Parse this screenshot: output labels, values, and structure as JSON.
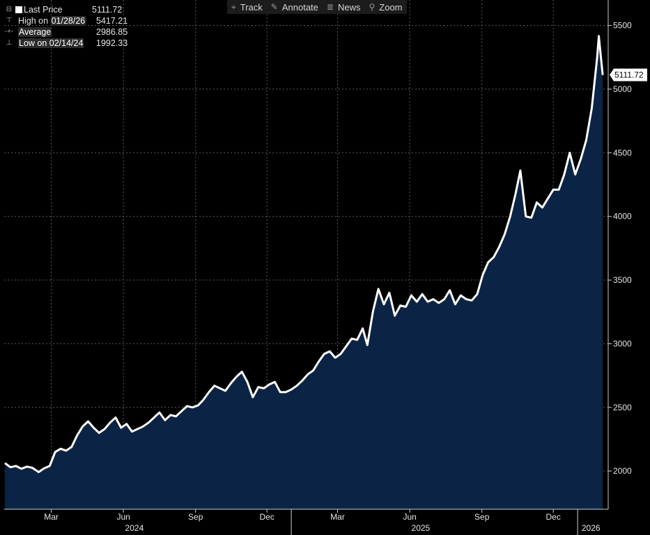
{
  "toolbar": {
    "items": [
      {
        "label": "Track",
        "icon": "crosshair-icon",
        "glyph": "⌖"
      },
      {
        "label": "Annotate",
        "icon": "pencil-icon",
        "glyph": "✎"
      },
      {
        "label": "News",
        "icon": "news-icon",
        "glyph": "≣"
      },
      {
        "label": "Zoom",
        "icon": "magnifier-icon",
        "glyph": "⚲"
      }
    ]
  },
  "legend": {
    "last": {
      "label": "Last Price",
      "value": "5111.72"
    },
    "high": {
      "prefix": "High on ",
      "date": "01/28/26",
      "value": "5417.21"
    },
    "average": {
      "label": "Average",
      "value": "2986.85"
    },
    "low": {
      "prefix": "Low on ",
      "date": "02/14/24",
      "value": "1992.33"
    }
  },
  "chart_data": {
    "type": "area",
    "series_color": "#ffffff",
    "fill_color": "#0b2445",
    "last_value_label": "5111.72",
    "ylim": [
      1700,
      5700
    ],
    "yticks": [
      2000,
      2500,
      3000,
      3500,
      4000,
      4500,
      5000,
      5500
    ],
    "xlim": [
      "2024-01-01",
      "2026-02-09"
    ],
    "month_ticks": [
      {
        "label": "Mar",
        "date": "2024-03-01"
      },
      {
        "label": "Jun",
        "date": "2024-06-01"
      },
      {
        "label": "Sep",
        "date": "2024-09-01"
      },
      {
        "label": "Dec",
        "date": "2024-12-01"
      },
      {
        "label": "Mar",
        "date": "2025-03-01"
      },
      {
        "label": "Jun",
        "date": "2025-06-01"
      },
      {
        "label": "Sep",
        "date": "2025-09-01"
      },
      {
        "label": "Dec",
        "date": "2025-12-01"
      }
    ],
    "year_ticks": [
      {
        "label": "2024",
        "date": "2024-06-15"
      },
      {
        "label": "2025",
        "date": "2025-06-15"
      },
      {
        "label": "2026",
        "date": "2026-01-18"
      }
    ],
    "year_separators": [
      "2025-01-01",
      "2026-01-01"
    ],
    "grid": true,
    "points": [
      [
        "2024-01-02",
        2062
      ],
      [
        "2024-01-09",
        2030
      ],
      [
        "2024-01-16",
        2040
      ],
      [
        "2024-01-23",
        2018
      ],
      [
        "2024-01-30",
        2035
      ],
      [
        "2024-02-06",
        2025
      ],
      [
        "2024-02-14",
        1992
      ],
      [
        "2024-02-21",
        2022
      ],
      [
        "2024-02-28",
        2040
      ],
      [
        "2024-03-06",
        2150
      ],
      [
        "2024-03-13",
        2175
      ],
      [
        "2024-03-20",
        2160
      ],
      [
        "2024-03-27",
        2190
      ],
      [
        "2024-04-03",
        2280
      ],
      [
        "2024-04-10",
        2350
      ],
      [
        "2024-04-17",
        2390
      ],
      [
        "2024-04-24",
        2340
      ],
      [
        "2024-05-01",
        2300
      ],
      [
        "2024-05-08",
        2330
      ],
      [
        "2024-05-15",
        2380
      ],
      [
        "2024-05-22",
        2420
      ],
      [
        "2024-05-29",
        2340
      ],
      [
        "2024-06-05",
        2370
      ],
      [
        "2024-06-12",
        2310
      ],
      [
        "2024-06-19",
        2330
      ],
      [
        "2024-06-26",
        2350
      ],
      [
        "2024-07-03",
        2380
      ],
      [
        "2024-07-10",
        2420
      ],
      [
        "2024-07-17",
        2460
      ],
      [
        "2024-07-24",
        2400
      ],
      [
        "2024-07-31",
        2440
      ],
      [
        "2024-08-07",
        2430
      ],
      [
        "2024-08-14",
        2470
      ],
      [
        "2024-08-21",
        2510
      ],
      [
        "2024-08-28",
        2500
      ],
      [
        "2024-09-04",
        2515
      ],
      [
        "2024-09-11",
        2560
      ],
      [
        "2024-09-18",
        2620
      ],
      [
        "2024-09-25",
        2670
      ],
      [
        "2024-10-02",
        2650
      ],
      [
        "2024-10-09",
        2630
      ],
      [
        "2024-10-16",
        2690
      ],
      [
        "2024-10-23",
        2740
      ],
      [
        "2024-10-30",
        2780
      ],
      [
        "2024-11-06",
        2700
      ],
      [
        "2024-11-13",
        2580
      ],
      [
        "2024-11-20",
        2660
      ],
      [
        "2024-11-27",
        2650
      ],
      [
        "2024-12-04",
        2680
      ],
      [
        "2024-12-11",
        2700
      ],
      [
        "2024-12-18",
        2620
      ],
      [
        "2024-12-25",
        2620
      ],
      [
        "2025-01-01",
        2640
      ],
      [
        "2025-01-08",
        2670
      ],
      [
        "2025-01-15",
        2710
      ],
      [
        "2025-01-22",
        2760
      ],
      [
        "2025-01-29",
        2790
      ],
      [
        "2025-02-05",
        2860
      ],
      [
        "2025-02-12",
        2920
      ],
      [
        "2025-02-19",
        2940
      ],
      [
        "2025-02-26",
        2890
      ],
      [
        "2025-03-05",
        2920
      ],
      [
        "2025-03-12",
        2980
      ],
      [
        "2025-03-19",
        3040
      ],
      [
        "2025-03-26",
        3030
      ],
      [
        "2025-04-02",
        3120
      ],
      [
        "2025-04-08",
        2990
      ],
      [
        "2025-04-15",
        3250
      ],
      [
        "2025-04-22",
        3430
      ],
      [
        "2025-04-29",
        3310
      ],
      [
        "2025-05-06",
        3400
      ],
      [
        "2025-05-13",
        3220
      ],
      [
        "2025-05-20",
        3300
      ],
      [
        "2025-05-27",
        3290
      ],
      [
        "2025-06-03",
        3380
      ],
      [
        "2025-06-10",
        3330
      ],
      [
        "2025-06-17",
        3390
      ],
      [
        "2025-06-24",
        3330
      ],
      [
        "2025-07-01",
        3350
      ],
      [
        "2025-07-08",
        3320
      ],
      [
        "2025-07-15",
        3350
      ],
      [
        "2025-07-22",
        3420
      ],
      [
        "2025-07-29",
        3310
      ],
      [
        "2025-08-05",
        3380
      ],
      [
        "2025-08-12",
        3350
      ],
      [
        "2025-08-19",
        3340
      ],
      [
        "2025-08-26",
        3390
      ],
      [
        "2025-09-02",
        3540
      ],
      [
        "2025-09-09",
        3640
      ],
      [
        "2025-09-16",
        3680
      ],
      [
        "2025-09-23",
        3760
      ],
      [
        "2025-09-30",
        3860
      ],
      [
        "2025-10-07",
        4000
      ],
      [
        "2025-10-14",
        4180
      ],
      [
        "2025-10-20",
        4360
      ],
      [
        "2025-10-27",
        4000
      ],
      [
        "2025-11-03",
        3990
      ],
      [
        "2025-11-10",
        4110
      ],
      [
        "2025-11-17",
        4070
      ],
      [
        "2025-11-24",
        4140
      ],
      [
        "2025-12-01",
        4210
      ],
      [
        "2025-12-08",
        4210
      ],
      [
        "2025-12-15",
        4330
      ],
      [
        "2025-12-22",
        4500
      ],
      [
        "2025-12-29",
        4330
      ],
      [
        "2026-01-05",
        4450
      ],
      [
        "2026-01-12",
        4600
      ],
      [
        "2026-01-19",
        4850
      ],
      [
        "2026-01-26",
        5250
      ],
      [
        "2026-01-28",
        5417
      ],
      [
        "2026-02-02",
        5111
      ]
    ]
  }
}
